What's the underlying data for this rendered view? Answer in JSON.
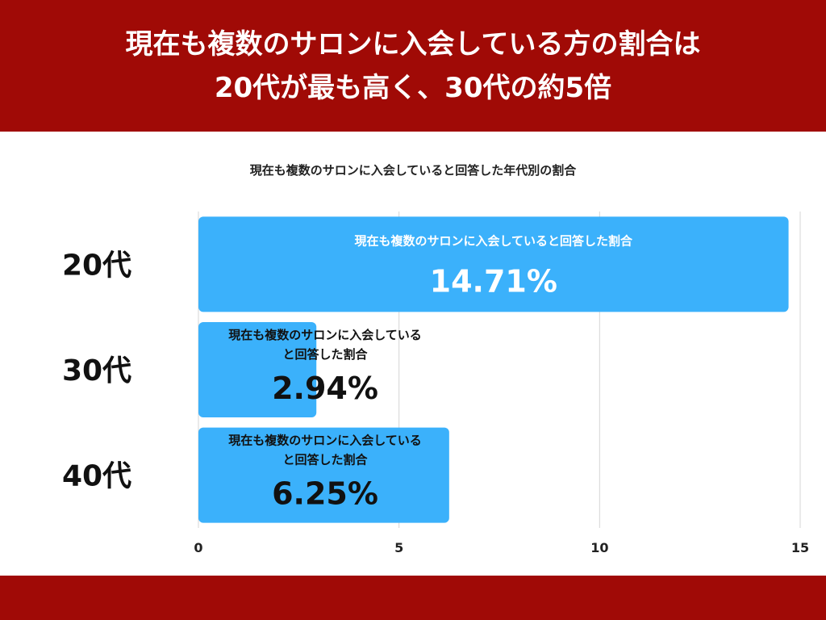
{
  "header": {
    "title_line1": "現在も複数のサロンに入会している方の割合は",
    "title_line2": "20代が最も高く、30代の約5倍"
  },
  "chart_data": {
    "type": "bar",
    "orientation": "horizontal",
    "title": "現在も複数のサロンに入会していると回答した年代別の割合",
    "categories": [
      "20代",
      "30代",
      "40代"
    ],
    "values": [
      14.71,
      2.94,
      6.25
    ],
    "bar_labels": [
      [
        "現在も複数のサロンに入会していると回答した割合"
      ],
      [
        "現在も複数のサロンに入会している",
        "と回答した割合"
      ],
      [
        "現在も複数のサロンに入会している",
        "と回答した割合"
      ]
    ],
    "value_labels": [
      "14.71%",
      "2.94%",
      "6.25%"
    ],
    "xlim": [
      0,
      15
    ],
    "xticks": [
      0,
      5,
      10,
      15
    ],
    "grid": true,
    "bar_color": "#3bb1fb"
  }
}
